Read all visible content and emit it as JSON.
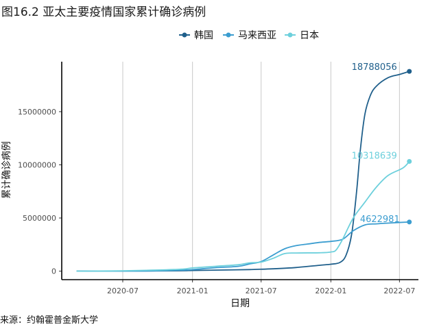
{
  "chart_data": {
    "type": "line",
    "title": "图16.2 亚太主要疫情国家累计确诊病例",
    "caption": "来源：约翰霍普金斯大学",
    "xlabel": "日期",
    "ylabel": "累计确诊病例",
    "x_ticks": [
      "2020-07",
      "2021-01",
      "2021-07",
      "2022-01",
      "2022-07"
    ],
    "y_ticks": [
      0,
      5000000,
      10000000,
      15000000
    ],
    "y_tick_labels": [
      "0",
      "5000000",
      "10000000",
      "15000000"
    ],
    "x_range": [
      "2020-01-22",
      "2022-08-20"
    ],
    "ylim": [
      -800000,
      19700000
    ],
    "grid": "vertical",
    "legend_position": "top",
    "series": [
      {
        "name": "韩国",
        "color": "#1f5f8b",
        "end_label": "18788056",
        "points": [
          [
            "2020-03-01",
            4000
          ],
          [
            "2020-06-01",
            12000
          ],
          [
            "2020-09-01",
            21000
          ],
          [
            "2020-12-01",
            35000
          ],
          [
            "2021-01-01",
            62000
          ],
          [
            "2021-03-01",
            95000
          ],
          [
            "2021-06-01",
            150000
          ],
          [
            "2021-08-01",
            220000
          ],
          [
            "2021-10-01",
            340000
          ],
          [
            "2021-12-01",
            550000
          ],
          [
            "2022-01-01",
            650000
          ],
          [
            "2022-01-25",
            820000
          ],
          [
            "2022-02-10",
            1500000
          ],
          [
            "2022-02-25",
            3500000
          ],
          [
            "2022-03-10",
            7500000
          ],
          [
            "2022-03-20",
            11500000
          ],
          [
            "2022-04-01",
            14800000
          ],
          [
            "2022-04-15",
            16500000
          ],
          [
            "2022-05-01",
            17400000
          ],
          [
            "2022-06-01",
            18200000
          ],
          [
            "2022-07-01",
            18500000
          ],
          [
            "2022-07-27",
            18788056
          ]
        ]
      },
      {
        "name": "马来西亚",
        "color": "#3b9dd0",
        "end_label": "4622981",
        "points": [
          [
            "2020-03-01",
            0
          ],
          [
            "2020-06-01",
            9000
          ],
          [
            "2020-09-01",
            10000
          ],
          [
            "2020-12-01",
            95000
          ],
          [
            "2021-01-01",
            140000
          ],
          [
            "2021-03-01",
            320000
          ],
          [
            "2021-05-01",
            450000
          ],
          [
            "2021-06-01",
            680000
          ],
          [
            "2021-07-01",
            900000
          ],
          [
            "2021-08-01",
            1500000
          ],
          [
            "2021-09-01",
            2100000
          ],
          [
            "2021-10-01",
            2400000
          ],
          [
            "2021-11-01",
            2550000
          ],
          [
            "2021-12-01",
            2700000
          ],
          [
            "2022-01-01",
            2800000
          ],
          [
            "2022-02-01",
            3000000
          ],
          [
            "2022-03-01",
            3800000
          ],
          [
            "2022-04-01",
            4350000
          ],
          [
            "2022-05-01",
            4450000
          ],
          [
            "2022-06-01",
            4520000
          ],
          [
            "2022-07-27",
            4622981
          ]
        ]
      },
      {
        "name": "日本",
        "color": "#6dd0dc",
        "end_label": "10318639",
        "points": [
          [
            "2020-03-01",
            0
          ],
          [
            "2020-06-01",
            17000
          ],
          [
            "2020-09-01",
            75000
          ],
          [
            "2020-12-01",
            180000
          ],
          [
            "2021-01-01",
            300000
          ],
          [
            "2021-03-01",
            450000
          ],
          [
            "2021-05-01",
            600000
          ],
          [
            "2021-06-01",
            780000
          ],
          [
            "2021-07-01",
            850000
          ],
          [
            "2021-08-01",
            1200000
          ],
          [
            "2021-09-01",
            1650000
          ],
          [
            "2021-10-01",
            1710000
          ],
          [
            "2021-12-01",
            1730000
          ],
          [
            "2022-01-01",
            1800000
          ],
          [
            "2022-01-15",
            2000000
          ],
          [
            "2022-02-01",
            3000000
          ],
          [
            "2022-03-01",
            5000000
          ],
          [
            "2022-04-01",
            6500000
          ],
          [
            "2022-05-01",
            7900000
          ],
          [
            "2022-06-01",
            9000000
          ],
          [
            "2022-07-10",
            9700000
          ],
          [
            "2022-07-27",
            10318639
          ]
        ]
      }
    ]
  }
}
